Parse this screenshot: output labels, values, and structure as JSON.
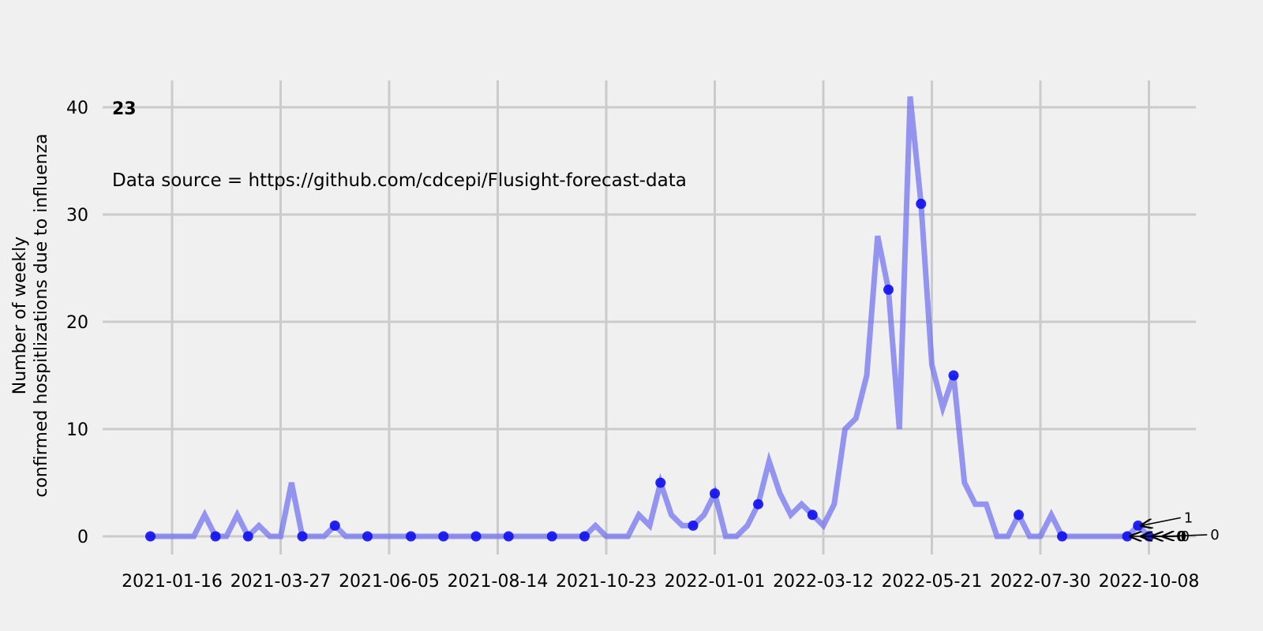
{
  "chart_data": {
    "type": "line",
    "title": "",
    "panel_label": "23",
    "annotation": "Data source = https://github.com/cdcepi/Flusight-forecast-data",
    "ylabel_line1": "Number of weekly",
    "ylabel_line2": "confirmed hospitlizations due to influenza",
    "xlabel": "",
    "ylim": [
      -3,
      42
    ],
    "grid": true,
    "x_ticks": [
      "2021-01-16",
      "2021-03-27",
      "2021-06-05",
      "2021-08-14",
      "2021-10-23",
      "2022-01-01",
      "2022-03-12",
      "2022-05-21",
      "2022-07-30",
      "2022-10-08"
    ],
    "y_ticks": [
      0,
      10,
      20,
      30,
      40
    ],
    "line_color": "#6b6bef",
    "marker_color": "#1010ee",
    "series": [
      {
        "x": [
          "2021-01-02",
          "2021-01-09",
          "2021-01-16",
          "2021-01-23",
          "2021-01-30",
          "2021-02-06",
          "2021-02-13",
          "2021-02-20",
          "2021-02-27",
          "2021-03-06",
          "2021-03-13",
          "2021-03-20",
          "2021-03-27",
          "2021-04-03",
          "2021-04-10",
          "2021-04-17",
          "2021-04-24",
          "2021-05-01",
          "2021-05-08",
          "2021-05-15",
          "2021-05-22",
          "2021-05-29",
          "2021-06-05",
          "2021-06-12",
          "2021-06-19",
          "2021-06-26",
          "2021-07-03",
          "2021-07-10",
          "2021-07-17",
          "2021-07-24",
          "2021-07-31",
          "2021-08-07",
          "2021-08-14",
          "2021-08-21",
          "2021-08-28",
          "2021-09-04",
          "2021-09-11",
          "2021-09-18",
          "2021-09-25",
          "2021-10-02",
          "2021-10-09",
          "2021-10-16",
          "2021-10-23",
          "2021-10-30",
          "2021-11-06",
          "2021-11-13",
          "2021-11-20",
          "2021-11-27",
          "2021-12-04",
          "2021-12-11",
          "2021-12-18",
          "2021-12-25",
          "2022-01-01",
          "2022-01-08",
          "2022-01-15",
          "2022-01-22",
          "2022-01-29",
          "2022-02-05",
          "2022-02-12",
          "2022-02-19",
          "2022-02-26",
          "2022-03-05",
          "2022-03-12",
          "2022-03-19",
          "2022-03-26",
          "2022-04-02",
          "2022-04-09",
          "2022-04-16",
          "2022-04-23",
          "2022-04-30",
          "2022-05-07",
          "2022-05-14",
          "2022-05-21",
          "2022-05-28",
          "2022-06-04",
          "2022-06-11",
          "2022-06-18",
          "2022-06-25",
          "2022-07-02",
          "2022-07-09",
          "2022-07-16",
          "2022-07-23",
          "2022-07-30",
          "2022-08-06",
          "2022-08-13",
          "2022-08-20",
          "2022-08-27",
          "2022-09-03",
          "2022-09-10",
          "2022-09-17",
          "2022-09-24",
          "2022-10-01",
          "2022-10-08"
        ],
        "values": [
          0,
          0,
          0,
          0,
          0,
          2,
          0,
          0,
          2,
          0,
          1,
          0,
          0,
          5,
          0,
          0,
          0,
          1,
          0,
          0,
          0,
          0,
          0,
          0,
          0,
          0,
          0,
          0,
          0,
          0,
          0,
          0,
          0,
          0,
          0,
          0,
          0,
          0,
          0,
          0,
          0,
          1,
          0,
          0,
          0,
          2,
          1,
          5,
          2,
          1,
          1,
          2,
          4,
          0,
          0,
          1,
          3,
          7,
          4,
          2,
          3,
          2,
          1,
          3,
          10,
          11,
          15,
          28,
          23,
          10,
          41,
          31,
          16,
          12,
          15,
          5,
          3,
          3,
          0,
          0,
          2,
          0,
          0,
          2,
          0,
          0,
          0,
          0,
          0,
          0,
          0,
          1,
          0
        ],
        "markers": [
          "2021-01-02",
          "2021-02-13",
          "2021-03-06",
          "2021-04-10",
          "2021-05-01",
          "2021-05-22",
          "2021-06-19",
          "2021-07-10",
          "2021-07-31",
          "2021-08-21",
          "2021-09-18",
          "2021-10-09",
          "2021-11-27",
          "2021-12-18",
          "2022-01-01",
          "2022-01-29",
          "2022-03-05",
          "2022-04-23",
          "2022-05-14",
          "2022-06-04",
          "2022-07-16",
          "2022-08-13",
          "2022-09-24",
          "2022-10-01",
          "2022-10-08"
        ]
      }
    ],
    "labels_end": [
      {
        "x": "2022-09-24",
        "y": 0,
        "text": "0"
      },
      {
        "x": "2022-10-01",
        "y": 0,
        "text": "0"
      },
      {
        "x": "2022-10-08",
        "y": 0,
        "text": "0"
      },
      {
        "x": "2022-10-01",
        "y": 1,
        "text": "1"
      },
      {
        "x": "2022-10-15",
        "y": 0,
        "text": "0"
      }
    ]
  }
}
